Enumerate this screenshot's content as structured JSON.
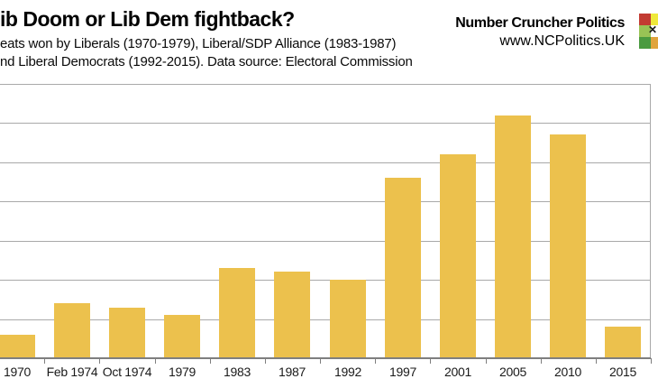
{
  "header": {
    "title": "ib Doom or Lib Dem fightback?",
    "subtitle_line1": "eats won by Liberals (1970-1979), Liberal/SDP Alliance (1983-1987)",
    "subtitle_line2": "nd Liberal Democrats (1992-2015). Data source: Electoral Commission",
    "brand_name": "Number Cruncher Politics",
    "brand_url": "www.NCPolitics.UK"
  },
  "logo": {
    "marker": "✕",
    "cells": [
      [
        "#C23B32",
        "#EFE93B"
      ],
      [
        "#98C355",
        "#FFFFFF"
      ],
      [
        "#4A9A3F",
        "#E0A43C"
      ]
    ]
  },
  "chart_data": {
    "type": "bar",
    "title": "ib Doom or Lib Dem fightback?",
    "subtitle": "eats won by Liberals (1970-1979), Liberal/SDP Alliance (1983-1987) nd Liberal Democrats (1992-2015). Data source: Electoral Commission",
    "categories": [
      "1970",
      "Feb 1974",
      "Oct 1974",
      "1979",
      "1983",
      "1987",
      "1992",
      "1997",
      "2001",
      "2005",
      "2010",
      "2015"
    ],
    "values": [
      6,
      14,
      13,
      11,
      23,
      22,
      20,
      46,
      52,
      62,
      57,
      8
    ],
    "xlabel": "",
    "ylabel": "",
    "ylim": [
      0,
      70
    ],
    "gridline_step": 10,
    "grid": true,
    "legend_position": "none",
    "bar_color": "#ECC14D",
    "gridline_color": "#A9A9A9",
    "axis_color": "#7F7F7F",
    "label_color": "#1a1a1a"
  }
}
